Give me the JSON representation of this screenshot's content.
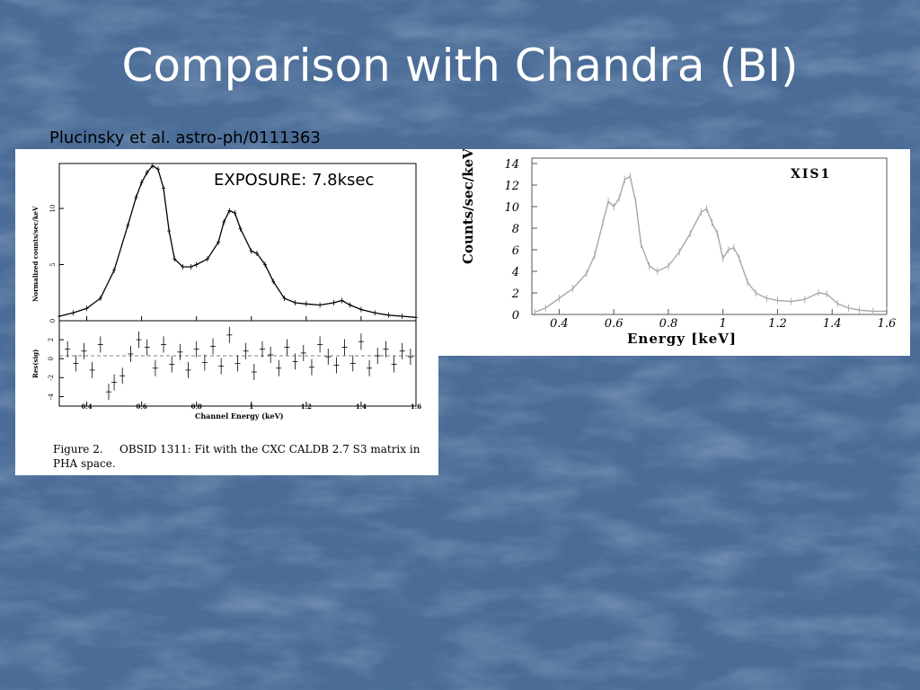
{
  "slide": {
    "title": "Comparison with Chandra (BI)",
    "citation": "Plucinsky et al. astro-ph/0111363",
    "exposure_label": "EXPOSURE: 7.8ksec"
  },
  "colors": {
    "background": "#4a6c97",
    "title": "#ffffff",
    "left_trace": "#000000",
    "right_trace": "#a8a8a8"
  },
  "chart_data": [
    {
      "type": "line",
      "panel": "chandra-spectrum",
      "ylabel": "Normalized counts/sec/keV",
      "xlim": [
        0.3,
        1.6
      ],
      "ylim": [
        0,
        14
      ],
      "yticks": [
        0,
        5,
        10
      ],
      "xticks": [
        0.4,
        0.6,
        0.8,
        1,
        1.2,
        1.4,
        1.6
      ],
      "x": [
        0.3,
        0.35,
        0.4,
        0.45,
        0.5,
        0.55,
        0.58,
        0.6,
        0.62,
        0.64,
        0.66,
        0.68,
        0.7,
        0.72,
        0.75,
        0.78,
        0.8,
        0.84,
        0.88,
        0.9,
        0.92,
        0.94,
        0.96,
        1.0,
        1.02,
        1.05,
        1.08,
        1.12,
        1.16,
        1.2,
        1.25,
        1.3,
        1.33,
        1.36,
        1.4,
        1.45,
        1.5,
        1.55,
        1.6
      ],
      "values": [
        0.4,
        0.7,
        1.1,
        2.0,
        4.5,
        8.5,
        11.0,
        12.3,
        13.2,
        13.8,
        13.5,
        11.8,
        8.0,
        5.5,
        4.8,
        4.8,
        5.0,
        5.5,
        7.0,
        8.8,
        9.8,
        9.6,
        8.2,
        6.2,
        6.0,
        5.0,
        3.5,
        2.0,
        1.6,
        1.5,
        1.4,
        1.6,
        1.8,
        1.4,
        1.0,
        0.7,
        0.5,
        0.4,
        0.3
      ]
    },
    {
      "type": "scatter",
      "panel": "chandra-residuals",
      "ylabel": "Res(sig)",
      "xlabel": "Channel Energy (keV)",
      "xlim": [
        0.3,
        1.6
      ],
      "ylim": [
        -5,
        4
      ],
      "yticks": [
        -4,
        -2,
        0,
        2
      ],
      "xticks": [
        0.4,
        0.6,
        0.8,
        1,
        1.2,
        1.4,
        1.6
      ],
      "x": [
        0.33,
        0.36,
        0.39,
        0.42,
        0.45,
        0.48,
        0.5,
        0.53,
        0.56,
        0.59,
        0.62,
        0.65,
        0.68,
        0.71,
        0.74,
        0.77,
        0.8,
        0.83,
        0.86,
        0.89,
        0.92,
        0.95,
        0.98,
        1.01,
        1.04,
        1.07,
        1.1,
        1.13,
        1.16,
        1.19,
        1.22,
        1.25,
        1.28,
        1.31,
        1.34,
        1.37,
        1.4,
        1.43,
        1.46,
        1.49,
        1.52,
        1.55,
        1.58
      ],
      "values": [
        1.0,
        -0.5,
        0.8,
        -1.2,
        1.5,
        -3.5,
        -2.5,
        -1.8,
        0.5,
        2.0,
        1.2,
        -1.0,
        1.5,
        -0.6,
        0.7,
        -1.2,
        1.0,
        -0.4,
        1.3,
        -0.8,
        2.5,
        -0.5,
        0.8,
        -1.4,
        1.0,
        0.4,
        -1.0,
        1.2,
        -0.3,
        0.6,
        -0.9,
        1.5,
        0.2,
        -0.7,
        1.2,
        -0.5,
        1.8,
        -1.0,
        0.3,
        1.0,
        -0.6,
        0.8,
        0.2
      ]
    },
    {
      "type": "line",
      "panel": "xis1-spectrum",
      "title": "XIS1",
      "xlabel": "Energy [keV]",
      "ylabel": "Counts/sec/keV",
      "xlim": [
        0.3,
        1.6
      ],
      "ylim": [
        0,
        14
      ],
      "yticks": [
        0,
        2,
        4,
        6,
        8,
        10,
        12,
        14
      ],
      "xticks": [
        0.4,
        0.6,
        0.8,
        1,
        1.2,
        1.4,
        1.6
      ],
      "x": [
        0.31,
        0.35,
        0.4,
        0.45,
        0.5,
        0.53,
        0.56,
        0.58,
        0.6,
        0.62,
        0.64,
        0.66,
        0.68,
        0.7,
        0.73,
        0.76,
        0.8,
        0.84,
        0.88,
        0.92,
        0.94,
        0.96,
        0.98,
        1.0,
        1.02,
        1.04,
        1.06,
        1.09,
        1.12,
        1.16,
        1.2,
        1.25,
        1.3,
        1.35,
        1.38,
        1.42,
        1.46,
        1.5,
        1.55,
        1.6
      ],
      "values": [
        0.2,
        0.6,
        1.5,
        2.4,
        3.8,
        5.5,
        8.5,
        10.5,
        10.0,
        10.8,
        12.5,
        12.8,
        10.5,
        6.5,
        4.5,
        4.0,
        4.5,
        5.8,
        7.5,
        9.5,
        9.8,
        8.5,
        7.5,
        5.2,
        6.0,
        6.2,
        5.2,
        3.0,
        2.0,
        1.5,
        1.3,
        1.2,
        1.4,
        2.0,
        1.9,
        1.0,
        0.6,
        0.4,
        0.3,
        0.3
      ]
    }
  ],
  "figure_caption": {
    "prefix": "Figure 2.",
    "line1": "OBSID 1311: Fit with the CXC CALDB 2.7 S3 matrix in",
    "line2": "PHA space."
  }
}
